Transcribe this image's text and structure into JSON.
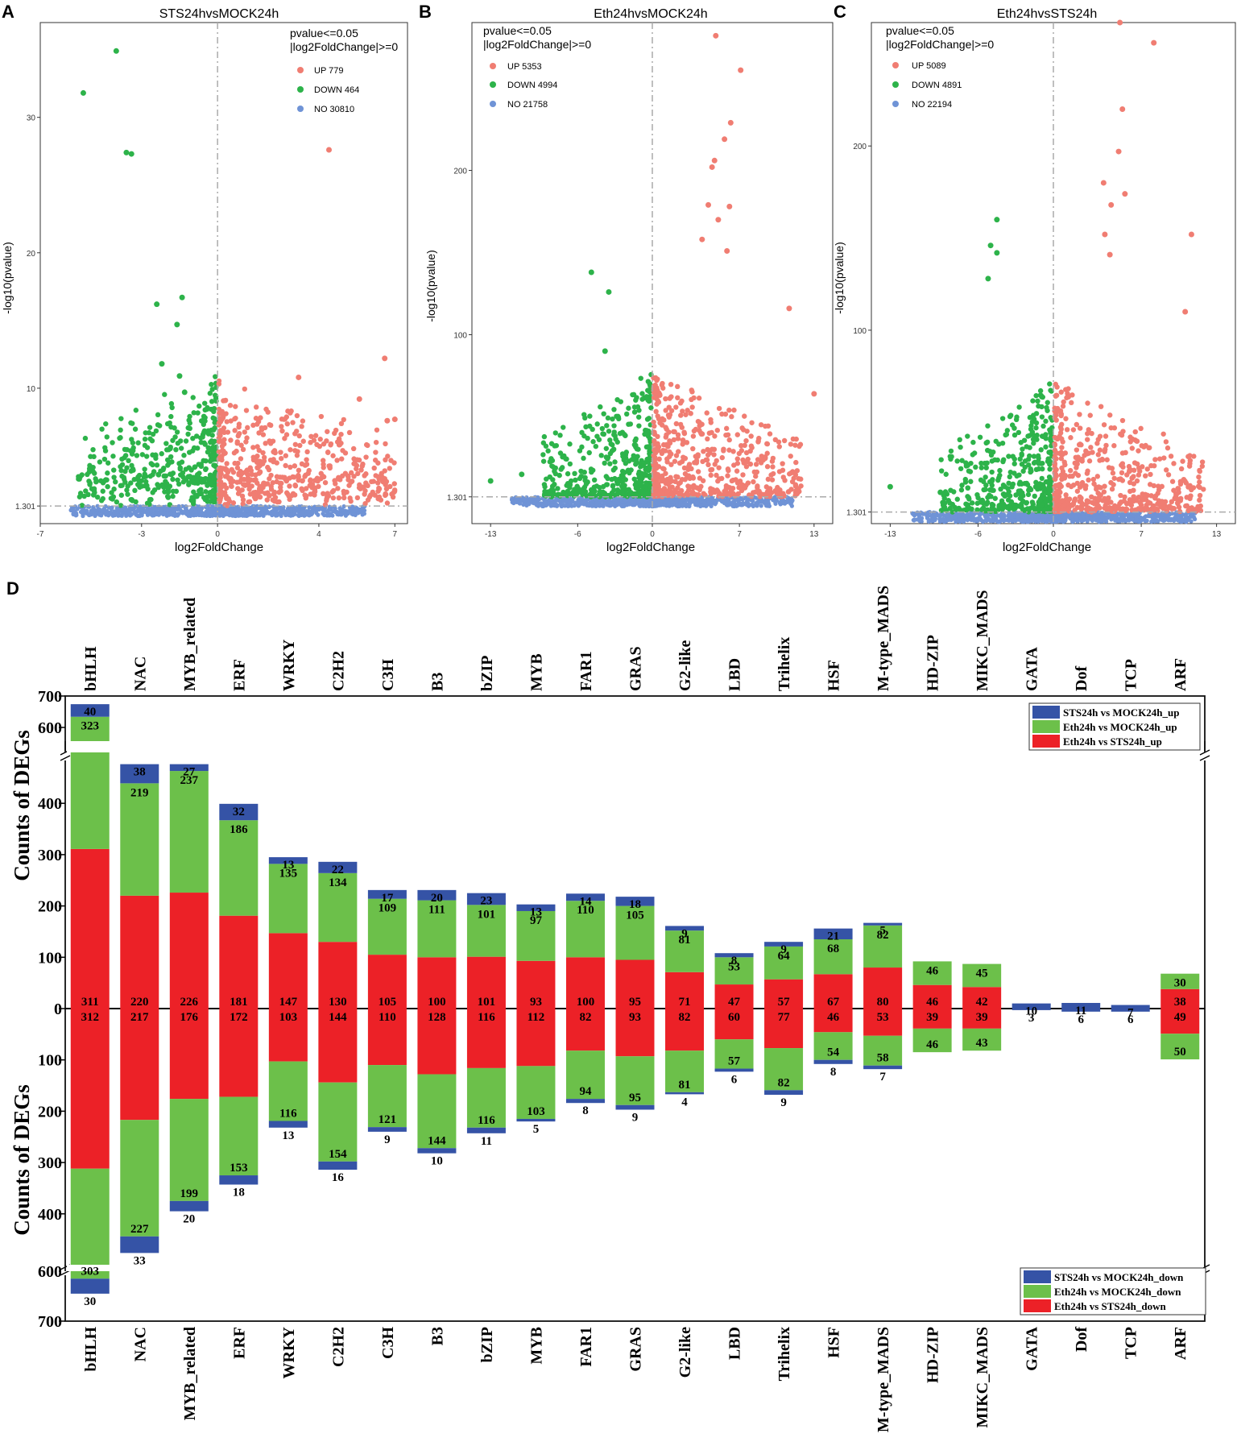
{
  "colors": {
    "up": "#F07D72",
    "down": "#2DB34A",
    "no": "#6F93D6",
    "bar_sts": "#3553A6",
    "bar_eth_mock": "#6CC04A",
    "bar_eth_sts": "#EC2127"
  },
  "chart_data": [
    {
      "type": "scatter",
      "panel_letter": "A",
      "title": "STS24hvsMOCK24h",
      "xlabel": "log2FoldChange",
      "ylabel": "-log10(pvalue)",
      "xticks": [
        "-7",
        "-3",
        "0",
        "4",
        "7"
      ],
      "yticks": [
        "1.301",
        "10",
        "20",
        "30"
      ],
      "xlim": [
        -7,
        7.5
      ],
      "ylim": [
        0,
        37
      ],
      "threshold_x": 0,
      "threshold_y": 1.301,
      "criteria_line1": "pvalue<=0.05",
      "criteria_line2": "|log2FoldChange|>=0",
      "legend": [
        {
          "key": "up",
          "label": "UP 779"
        },
        {
          "key": "down",
          "label": "DOWN 464"
        },
        {
          "key": "no",
          "label": "NO 30810"
        }
      ],
      "highlight_points": [
        [
          -4,
          34.9
        ],
        [
          -5.3,
          31.8
        ],
        [
          -3.6,
          27.4
        ],
        [
          -3.4,
          27.3
        ],
        [
          -2.4,
          16.2
        ],
        [
          -1.4,
          16.7
        ],
        [
          -1.6,
          14.7
        ],
        [
          -2.2,
          11.8
        ],
        [
          -1.5,
          10.9
        ],
        [
          -1.3,
          9.7
        ],
        [
          4.4,
          27.6
        ],
        [
          6.6,
          12.2
        ],
        [
          5.6,
          9.2
        ],
        [
          7.0,
          7.7
        ],
        [
          6.7,
          7.6
        ],
        [
          3.2,
          10.8
        ]
      ],
      "cloud_spread": {
        "down_x": [
          -5.5,
          -0.05
        ],
        "up_x": [
          0.05,
          7
        ],
        "base_max": 8
      }
    },
    {
      "type": "scatter",
      "panel_letter": "B",
      "title": "Eth24hvsMOCK24h",
      "xlabel": "log2FoldChange",
      "ylabel": "-log10(pvalue)",
      "xticks": [
        "-13",
        "-6",
        "0",
        "7",
        "13"
      ],
      "yticks": [
        "1.301",
        "100",
        "200"
      ],
      "xlim": [
        -14.5,
        14.5
      ],
      "ylim": [
        -15,
        290
      ],
      "threshold_x": 0,
      "threshold_y": 1.301,
      "criteria_line1": "pvalue<=0.05",
      "criteria_line2": "|log2FoldChange|>=0",
      "legend": [
        {
          "key": "up",
          "label": "UP 5353"
        },
        {
          "key": "down",
          "label": "DOWN 4994"
        },
        {
          "key": "no",
          "label": "NO 21758"
        }
      ],
      "highlight_points": [
        [
          5.1,
          282
        ],
        [
          7.1,
          261
        ],
        [
          6.3,
          229
        ],
        [
          5.8,
          219
        ],
        [
          5.0,
          206
        ],
        [
          4.8,
          202
        ],
        [
          6.2,
          178
        ],
        [
          4.5,
          179
        ],
        [
          5.3,
          170
        ],
        [
          4.0,
          158
        ],
        [
          6.0,
          151
        ],
        [
          11.0,
          116
        ],
        [
          13.0,
          64
        ],
        [
          -4.9,
          138
        ],
        [
          -3.5,
          126
        ],
        [
          -3.8,
          90
        ],
        [
          -13.0,
          11
        ],
        [
          -10.5,
          15
        ]
      ],
      "cloud_spread": {
        "down_x": [
          -9,
          -0.1
        ],
        "up_x": [
          0.1,
          12
        ],
        "base_max": 75
      }
    },
    {
      "type": "scatter",
      "panel_letter": "C",
      "title": "Eth24hvsSTS24h",
      "xlabel": "log2FoldChange",
      "ylabel": "-log10(pvalue)",
      "xticks": [
        "-13",
        "-6",
        "0",
        "7",
        "13"
      ],
      "yticks": [
        "1.301",
        "100",
        "200"
      ],
      "xlim": [
        -14.5,
        14.5
      ],
      "ylim": [
        -5,
        267
      ],
      "threshold_x": 0,
      "threshold_y": 1.301,
      "criteria_line1": "pvalue<=0.05",
      "criteria_line2": "|log2FoldChange|>=0",
      "legend": [
        {
          "key": "up",
          "label": "UP 5089"
        },
        {
          "key": "down",
          "label": "DOWN 4891"
        },
        {
          "key": "no",
          "label": "NO 22194"
        }
      ],
      "highlight_points": [
        [
          5.3,
          267
        ],
        [
          8.0,
          256
        ],
        [
          5.5,
          220
        ],
        [
          5.2,
          197
        ],
        [
          4.0,
          180
        ],
        [
          5.7,
          174
        ],
        [
          4.6,
          168
        ],
        [
          11.0,
          152
        ],
        [
          4.1,
          152
        ],
        [
          4.5,
          141
        ],
        [
          10.5,
          110
        ],
        [
          -4.5,
          160
        ],
        [
          -5.0,
          146
        ],
        [
          -4.5,
          142
        ],
        [
          -5.2,
          128
        ],
        [
          -13.0,
          15
        ],
        [
          -9.0,
          12
        ]
      ],
      "cloud_spread": {
        "down_x": [
          -9,
          -0.1
        ],
        "up_x": [
          0.1,
          12
        ],
        "base_max": 70
      }
    },
    {
      "type": "bar",
      "panel_letter": "D",
      "stacking": "stacked",
      "ylabel": "Counts of DEGs",
      "yticks_top": [
        "700",
        "600",
        "400",
        "300",
        "200",
        "100",
        "0"
      ],
      "yticks_bottom": [
        "100",
        "200",
        "300",
        "400",
        "600",
        "700"
      ],
      "axis_break": [
        470,
        580
      ],
      "categories": [
        "bHLH",
        "NAC",
        "MYB_related",
        "ERF",
        "WRKY",
        "C2H2",
        "C3H",
        "B3",
        "bZIP",
        "MYB",
        "FAR1",
        "GRAS",
        "G2-like",
        "LBD",
        "Trihelix",
        "HSF",
        "M-type_MADS",
        "HD-ZIP",
        "MIKC_MADS",
        "GATA",
        "Dof",
        "TCP",
        "ARF"
      ],
      "series_up": [
        {
          "name": "Eth24h vs STS24h_up",
          "key": "bar_eth_sts",
          "values": [
            311,
            220,
            226,
            181,
            147,
            130,
            105,
            100,
            101,
            93,
            100,
            95,
            71,
            47,
            57,
            67,
            80,
            46,
            42,
            0,
            0,
            0,
            38
          ]
        },
        {
          "name": "Eth24h vs MOCK24h_up",
          "key": "bar_eth_mock",
          "values": [
            323,
            219,
            237,
            186,
            135,
            134,
            109,
            111,
            101,
            97,
            110,
            105,
            81,
            53,
            64,
            68,
            82,
            46,
            45,
            0,
            0,
            0,
            30
          ]
        },
        {
          "name": "STS24h vs MOCK24h_up",
          "key": "bar_sts",
          "values": [
            40,
            38,
            27,
            32,
            13,
            22,
            17,
            20,
            23,
            13,
            14,
            18,
            9,
            8,
            9,
            21,
            5,
            0,
            0,
            10,
            11,
            7,
            0
          ]
        }
      ],
      "series_down": [
        {
          "name": "Eth24h vs STS24h_down",
          "key": "bar_eth_sts",
          "values": [
            312,
            217,
            176,
            172,
            103,
            144,
            110,
            128,
            116,
            112,
            82,
            93,
            82,
            60,
            77,
            46,
            53,
            39,
            39,
            0,
            0,
            0,
            49
          ]
        },
        {
          "name": "Eth24h vs MOCK24h_down",
          "key": "bar_eth_mock",
          "values": [
            303,
            227,
            199,
            153,
            116,
            154,
            121,
            144,
            116,
            103,
            94,
            95,
            81,
            57,
            82,
            54,
            58,
            46,
            43,
            0,
            0,
            0,
            50
          ]
        },
        {
          "name": "STS24h vs MOCK24h_down",
          "key": "bar_sts",
          "values": [
            30,
            33,
            20,
            18,
            13,
            16,
            9,
            10,
            11,
            5,
            8,
            9,
            4,
            6,
            9,
            8,
            7,
            0,
            0,
            3,
            6,
            6,
            0
          ]
        }
      ],
      "legend_up": [
        "STS24h vs MOCK24h_up",
        "Eth24h vs MOCK24h_up",
        "Eth24h vs STS24h_up"
      ],
      "legend_down": [
        "STS24h vs MOCK24h_down",
        "Eth24h vs MOCK24h_down",
        "Eth24h vs STS24h_down"
      ]
    }
  ]
}
